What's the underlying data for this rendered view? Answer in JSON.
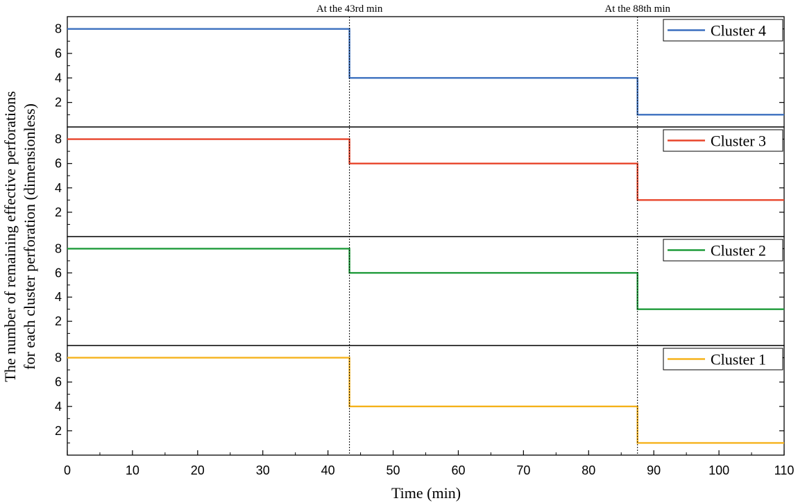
{
  "chart_data": {
    "type": "line",
    "title": "",
    "xlabel": "Time (min)",
    "ylabel_lines": [
      "The number of remaining effective perforations",
      "for each cluster perforation (dimensionless)"
    ],
    "xlim": [
      0,
      110
    ],
    "ylim": [
      0,
      9
    ],
    "x_ticks": [
      0,
      10,
      20,
      30,
      40,
      50,
      60,
      70,
      80,
      90,
      100,
      110
    ],
    "y_ticks": [
      2,
      4,
      6,
      8
    ],
    "grid": false,
    "legend_position": "top-right",
    "annotations": [
      {
        "label": "At the 43rd min",
        "x": 43.3
      },
      {
        "label": "At the 88th min",
        "x": 87.5
      }
    ],
    "series": [
      {
        "name": "Cluster 4",
        "color": "#3a6fbf",
        "x": [
          0,
          43.3,
          43.3,
          87.5,
          87.5,
          110
        ],
        "y": [
          8,
          8,
          4,
          4,
          1,
          1
        ]
      },
      {
        "name": "Cluster 3",
        "color": "#e8442a",
        "x": [
          0,
          43.3,
          43.3,
          87.5,
          87.5,
          110
        ],
        "y": [
          8,
          8,
          6,
          6,
          3,
          3
        ]
      },
      {
        "name": "Cluster 2",
        "color": "#1e9b3a",
        "x": [
          0,
          43.3,
          43.3,
          87.5,
          87.5,
          110
        ],
        "y": [
          8,
          8,
          6,
          6,
          3,
          3
        ]
      },
      {
        "name": "Cluster 1",
        "color": "#f5b21b",
        "x": [
          0,
          43.3,
          43.3,
          87.5,
          87.5,
          110
        ],
        "y": [
          8,
          8,
          4,
          4,
          1,
          1
        ]
      }
    ]
  }
}
